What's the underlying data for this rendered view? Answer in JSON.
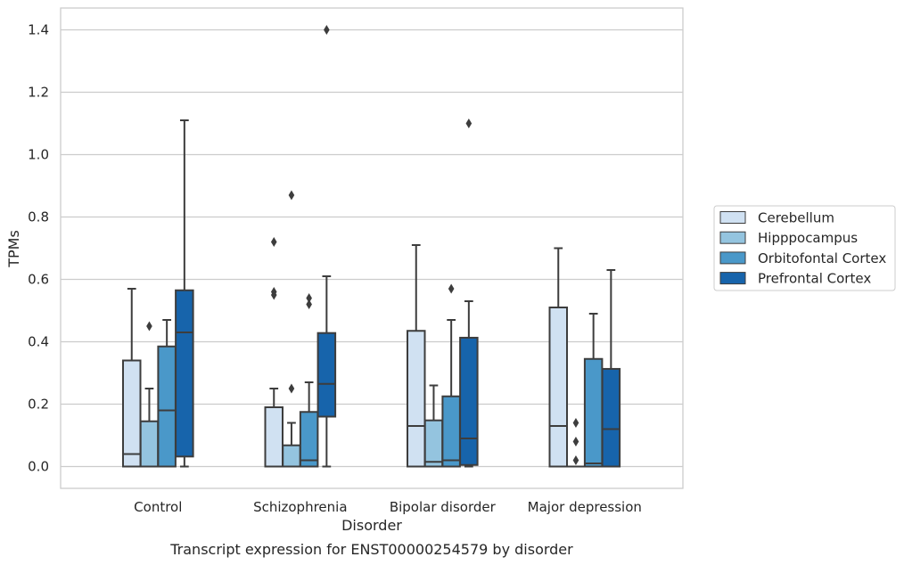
{
  "chart_data": {
    "type": "box",
    "caption": "Transcript expression for ENST00000254579 by disorder",
    "xlabel": "Disorder",
    "ylabel": "TPMs",
    "ylim": [
      -0.07,
      1.47
    ],
    "yticks": [
      0.0,
      0.2,
      0.4,
      0.6,
      0.8,
      1.0,
      1.2,
      1.4
    ],
    "ytick_labels": [
      "0.0",
      "0.2",
      "0.4",
      "0.6",
      "0.8",
      "1.0",
      "1.2",
      "1.4"
    ],
    "grid": "horizontal",
    "legend_position": "right",
    "categories": [
      "Control",
      "Schizophrenia",
      "Bipolar disorder",
      "Major depression"
    ],
    "series": [
      {
        "name": "Cerebellum",
        "color": "#d0e1f2",
        "boxes": [
          {
            "whislo": 0.0,
            "q1": 0.0,
            "med": 0.04,
            "q3": 0.34,
            "whishi": 0.57,
            "fliers": []
          },
          {
            "whislo": 0.0,
            "q1": 0.0,
            "med": 0.0,
            "q3": 0.19,
            "whishi": 0.25,
            "fliers": [
              0.55,
              0.56,
              0.72
            ]
          },
          {
            "whislo": 0.0,
            "q1": 0.0,
            "med": 0.13,
            "q3": 0.435,
            "whishi": 0.71,
            "fliers": []
          },
          {
            "whislo": 0.0,
            "q1": 0.0,
            "med": 0.13,
            "q3": 0.51,
            "whishi": 0.7,
            "fliers": []
          }
        ]
      },
      {
        "name": "Hipppocampus",
        "color": "#94c4df",
        "boxes": [
          {
            "whislo": 0.0,
            "q1": 0.0,
            "med": 0.0,
            "q3": 0.145,
            "whishi": 0.25,
            "fliers": [
              0.45
            ]
          },
          {
            "whislo": 0.0,
            "q1": 0.0,
            "med": 0.0,
            "q3": 0.068,
            "whishi": 0.14,
            "fliers": [
              0.25,
              0.87
            ]
          },
          {
            "whislo": 0.0,
            "q1": 0.0,
            "med": 0.015,
            "q3": 0.148,
            "whishi": 0.26,
            "fliers": []
          },
          {
            "whislo": 0.0,
            "q1": 0.0,
            "med": 0.0,
            "q3": 0.0,
            "whishi": 0.0,
            "fliers": [
              0.02,
              0.08,
              0.14
            ]
          }
        ]
      },
      {
        "name": "Orbitofontal Cortex",
        "color": "#4a98c9",
        "boxes": [
          {
            "whislo": 0.0,
            "q1": 0.0,
            "med": 0.18,
            "q3": 0.385,
            "whishi": 0.47,
            "fliers": []
          },
          {
            "whislo": 0.0,
            "q1": 0.0,
            "med": 0.02,
            "q3": 0.175,
            "whishi": 0.27,
            "fliers": [
              0.52,
              0.54
            ]
          },
          {
            "whislo": 0.0,
            "q1": 0.0,
            "med": 0.02,
            "q3": 0.225,
            "whishi": 0.47,
            "fliers": [
              0.57
            ]
          },
          {
            "whislo": 0.0,
            "q1": 0.0,
            "med": 0.01,
            "q3": 0.345,
            "whishi": 0.49,
            "fliers": []
          }
        ]
      },
      {
        "name": "Prefrontal Cortex",
        "color": "#1764ab",
        "boxes": [
          {
            "whislo": 0.0,
            "q1": 0.032,
            "med": 0.43,
            "q3": 0.565,
            "whishi": 1.11,
            "fliers": []
          },
          {
            "whislo": 0.0,
            "q1": 0.16,
            "med": 0.265,
            "q3": 0.428,
            "whishi": 0.61,
            "fliers": [
              1.4
            ]
          },
          {
            "whislo": 0.0,
            "q1": 0.005,
            "med": 0.09,
            "q3": 0.413,
            "whishi": 0.53,
            "fliers": [
              1.1
            ]
          },
          {
            "whislo": 0.0,
            "q1": 0.0,
            "med": 0.12,
            "q3": 0.313,
            "whishi": 0.63,
            "fliers": []
          }
        ]
      }
    ]
  }
}
